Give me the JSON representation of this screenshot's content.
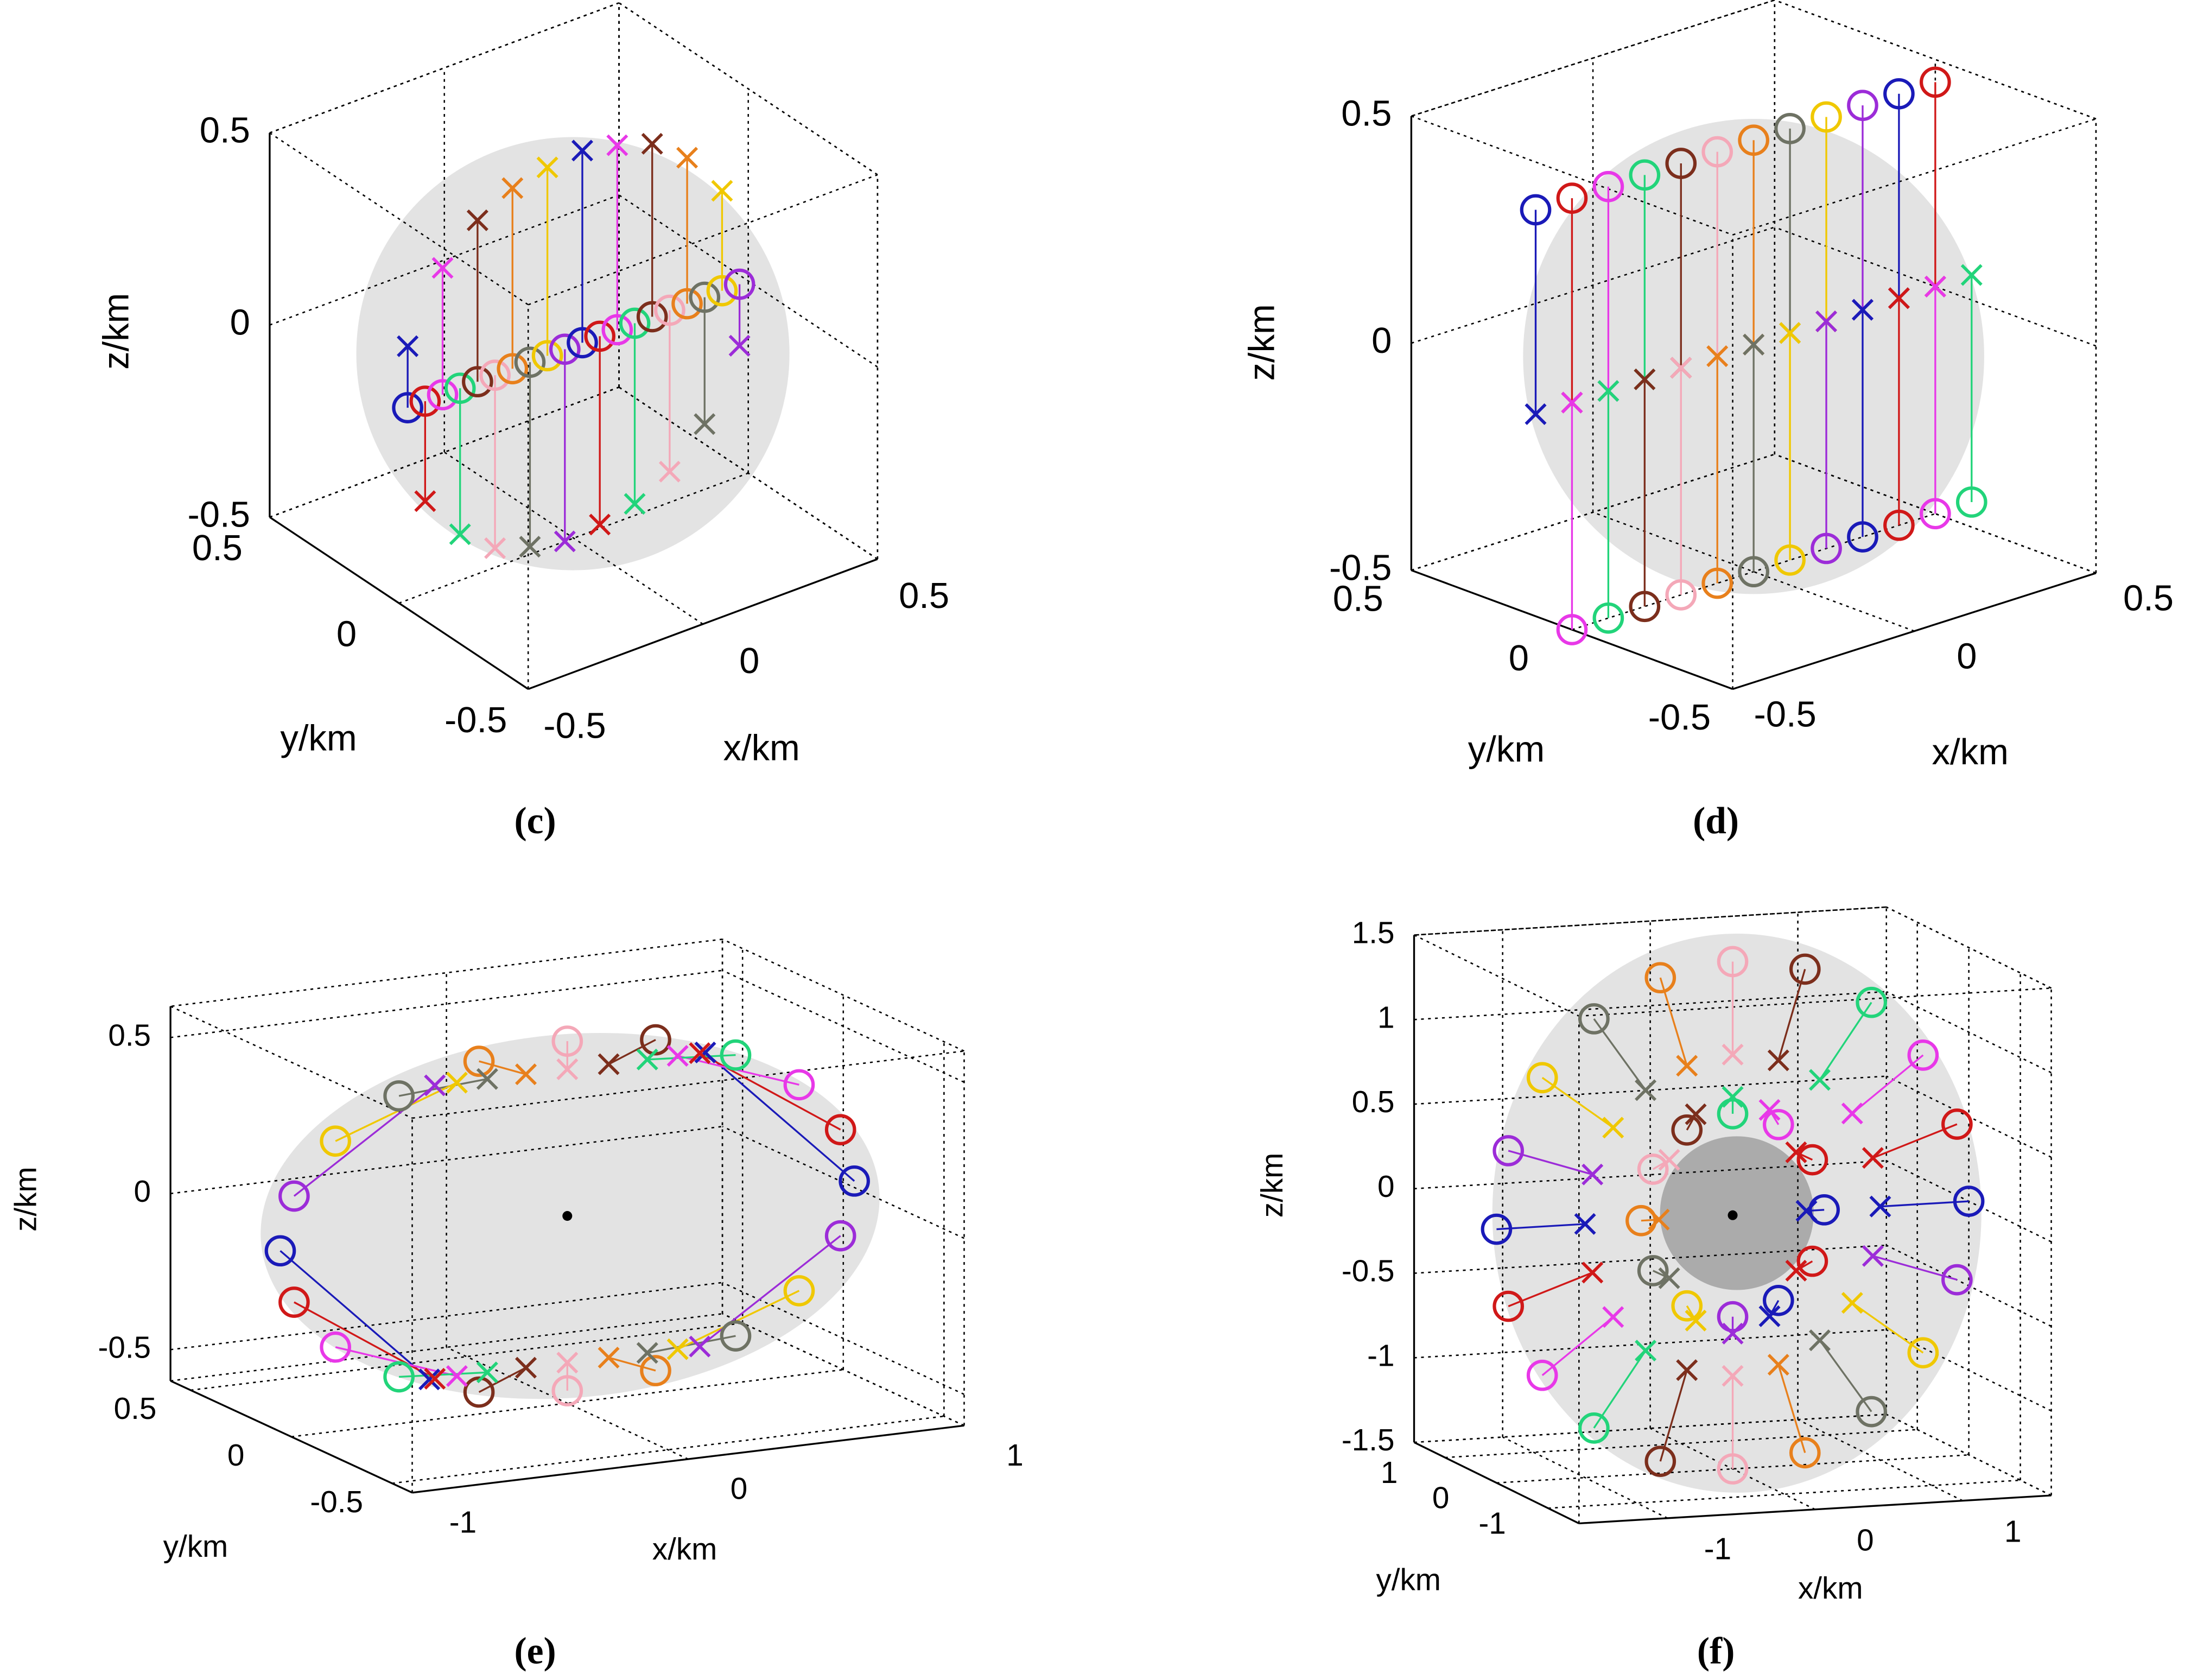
{
  "chart_data": [
    {
      "type": "scatter3d",
      "caption": "(c)",
      "xlabel": "x/km",
      "ylabel": "y/km",
      "zlabel": "z/km",
      "xlim": [
        -0.5,
        0.5
      ],
      "ylim": [
        -0.5,
        0.5
      ],
      "zlim": [
        -0.5,
        0.5
      ],
      "xticks": [
        -0.5,
        0,
        0.5
      ],
      "yticks": [
        -0.5,
        0,
        0.5
      ],
      "zticks": [
        -0.5,
        0,
        0.5
      ],
      "grid": true,
      "start_marker": "o",
      "end_marker": "x",
      "colors": [
        "#1a1ab8",
        "#d01818",
        "#e838e8",
        "#22d47a",
        "#7c2e1c",
        "#f4a8b8",
        "#e8801c",
        "#6e7264",
        "#f0c800",
        "#9c2cd8"
      ],
      "start": {
        "x": [
          -0.475,
          -0.425,
          -0.375,
          -0.325,
          -0.275,
          -0.225,
          -0.175,
          -0.125,
          -0.075,
          -0.025,
          0.025,
          0.075,
          0.125,
          0.175,
          0.225,
          0.275,
          0.325,
          0.375,
          0.425,
          0.475
        ],
        "y": [
          0,
          0,
          0,
          0,
          0,
          0,
          0,
          0,
          0,
          0,
          0,
          0,
          0,
          0,
          0,
          0,
          0,
          0,
          0,
          0
        ],
        "z": [
          0,
          0,
          0,
          0,
          0,
          0,
          0,
          0,
          0,
          0,
          0,
          0,
          0,
          0,
          0,
          0,
          0,
          0,
          0,
          0
        ]
      },
      "end": {
        "x": [
          -0.475,
          -0.425,
          -0.375,
          -0.325,
          -0.275,
          -0.225,
          -0.175,
          -0.125,
          -0.075,
          -0.025,
          0.025,
          0.075,
          0.125,
          0.175,
          0.225,
          0.275,
          0.325,
          0.375,
          0.425,
          0.475
        ],
        "y": [
          0,
          0,
          0,
          0,
          0,
          0,
          0,
          0,
          0,
          0,
          0,
          0,
          0,
          0,
          0,
          0,
          0,
          0,
          0,
          0
        ],
        "z": [
          0.16,
          -0.26,
          0.33,
          -0.38,
          0.42,
          -0.45,
          0.47,
          -0.48,
          0.49,
          -0.5,
          0.5,
          -0.49,
          0.48,
          -0.47,
          0.45,
          -0.42,
          0.38,
          -0.33,
          0.26,
          -0.16
        ]
      }
    },
    {
      "type": "scatter3d",
      "caption": "(d)",
      "xlabel": "x/km",
      "ylabel": "y/km",
      "zlabel": "z/km",
      "xlim": [
        -0.5,
        0.5
      ],
      "ylim": [
        -0.5,
        0.5
      ],
      "zlim": [
        -0.5,
        0.5
      ],
      "xticks": [
        -0.5,
        0,
        0.5
      ],
      "yticks": [
        -0.5,
        0,
        0.5
      ],
      "zticks": [
        -0.5,
        0,
        0.5
      ],
      "grid": true,
      "start_marker": "o",
      "end_marker": "x",
      "colors": [
        "#1a1ab8",
        "#d01818",
        "#e838e8",
        "#22d47a",
        "#7c2e1c",
        "#f4a8b8",
        "#e8801c",
        "#6e7264",
        "#f0c800",
        "#9c2cd8"
      ],
      "start": {
        "x": [
          -0.6,
          -0.5,
          -0.4,
          -0.3,
          -0.2,
          -0.1,
          0,
          0.1,
          0.2,
          0.3,
          0.4,
          0.5,
          -0.5,
          -0.4,
          -0.3,
          -0.2,
          -0.1,
          0,
          0.1,
          0.2,
          0.3,
          0.4,
          0.5,
          0.6
        ],
        "y": [
          0,
          0,
          0,
          0,
          0,
          0,
          0,
          0,
          0,
          0,
          0,
          0,
          0,
          0,
          0,
          0,
          0,
          0,
          0,
          0,
          0,
          0,
          0,
          0
        ],
        "z": [
          0.45,
          0.45,
          0.45,
          0.45,
          0.45,
          0.45,
          0.45,
          0.45,
          0.45,
          0.45,
          0.45,
          0.45,
          -0.5,
          -0.5,
          -0.5,
          -0.5,
          -0.5,
          -0.5,
          -0.5,
          -0.5,
          -0.5,
          -0.5,
          -0.5,
          -0.5
        ]
      },
      "end": {
        "x": [
          -0.6,
          -0.5,
          -0.4,
          -0.3,
          -0.2,
          -0.1,
          0,
          0.1,
          0.2,
          0.3,
          0.4,
          0.5,
          -0.5,
          -0.4,
          -0.3,
          -0.2,
          -0.1,
          0,
          0.1,
          0.2,
          0.3,
          0.4,
          0.5,
          0.6
        ],
        "y": [
          0,
          0,
          0,
          0,
          0,
          0,
          0,
          0,
          0,
          0,
          0,
          0,
          0,
          0,
          0,
          0,
          0,
          0,
          0,
          0,
          0,
          0,
          0,
          0
        ],
        "z": [
          0,
          0,
          0,
          0,
          0,
          0,
          0,
          0,
          0,
          0,
          0,
          0,
          0,
          0,
          0,
          0,
          0,
          0,
          0,
          0,
          0,
          0,
          0,
          0
        ]
      }
    },
    {
      "type": "scatter3d",
      "caption": "(e)",
      "xlabel": "x/km",
      "ylabel": "y/km",
      "zlabel": "z/km",
      "xlim": [
        -1,
        1
      ],
      "ylim": [
        -0.6,
        0.6
      ],
      "zlim": [
        -0.6,
        0.6
      ],
      "xticks": [
        -1,
        0,
        1
      ],
      "yticks": [
        -0.5,
        0,
        0.5
      ],
      "zticks": [
        -0.5,
        0,
        0.5
      ],
      "grid": true,
      "start_marker": "o",
      "end_marker": "x",
      "colors": [
        "#1a1ab8",
        "#d01818",
        "#e838e8",
        "#22d47a",
        "#7c2e1c",
        "#f4a8b8",
        "#e8801c",
        "#6e7264",
        "#f0c800",
        "#9c2cd8"
      ],
      "center": {
        "x": 0,
        "y": 0,
        "z": 0
      },
      "start": {
        "x": [
          1.04,
          0.99,
          0.84,
          0.61,
          0.32,
          0,
          -0.32,
          -0.61,
          -0.84,
          -0.99,
          -1.04,
          -0.99,
          -0.84,
          -0.61,
          -0.32,
          0,
          0.32,
          0.61,
          0.84,
          0.99
        ],
        "y": [
          0,
          0,
          0,
          0,
          0,
          0,
          0,
          0,
          0,
          0,
          0,
          0,
          0,
          0,
          0,
          0,
          0,
          0,
          0,
          0
        ],
        "z": [
          0,
          0.17,
          0.33,
          0.45,
          0.53,
          0.56,
          0.53,
          0.45,
          0.33,
          0.17,
          0,
          -0.17,
          -0.33,
          -0.45,
          -0.53,
          -0.56,
          -0.53,
          -0.45,
          -0.33,
          -0.17
        ]
      },
      "end": {
        "x": [
          0.5,
          0.48,
          0.4,
          0.29,
          0.15,
          0,
          -0.15,
          -0.29,
          -0.4,
          -0.48,
          -0.5,
          -0.48,
          -0.4,
          -0.29,
          -0.15,
          0,
          0.15,
          0.29,
          0.4,
          0.48
        ],
        "y": [
          0,
          0,
          0,
          0,
          0,
          0,
          0,
          0,
          0,
          0,
          0,
          0,
          0,
          0,
          0,
          0,
          0,
          0,
          0,
          0
        ],
        "z": [
          0.47,
          0.47,
          0.47,
          0.47,
          0.47,
          0.47,
          0.47,
          0.47,
          0.47,
          0.47,
          -0.47,
          -0.47,
          -0.47,
          -0.47,
          -0.47,
          -0.47,
          -0.47,
          -0.47,
          -0.47,
          -0.47
        ]
      }
    },
    {
      "type": "scatter3d",
      "caption": "(f)",
      "xlabel": "x/km",
      "ylabel": "y/km",
      "zlabel": "z/km",
      "xlim": [
        -1.6,
        1.6
      ],
      "ylim": [
        -1.6,
        1.6
      ],
      "zlim": [
        -1.5,
        1.5
      ],
      "xticks": [
        -1,
        0,
        1
      ],
      "yticks": [
        -1,
        0,
        1
      ],
      "zticks": [
        -1.5,
        -1,
        -0.5,
        0,
        0.5,
        1,
        1.5
      ],
      "grid": true,
      "start_marker": "o",
      "end_marker": "x",
      "colors": [
        "#1a1ab8",
        "#d01818",
        "#e838e8",
        "#22d47a",
        "#7c2e1c",
        "#f4a8b8",
        "#e8801c",
        "#6e7264",
        "#f0c800",
        "#9c2cd8"
      ],
      "center": {
        "x": 0,
        "y": 0,
        "z": 0
      },
      "start": {
        "x": [
          1.6,
          1.52,
          1.29,
          0.94,
          0.49,
          0,
          -0.49,
          -0.94,
          -1.29,
          -1.52,
          -1.6,
          -1.52,
          -1.29,
          -0.94,
          -0.49,
          0,
          0.49,
          0.94,
          1.29,
          1.52,
          0.62,
          0.54,
          0.31,
          0,
          -0.31,
          -0.54,
          -0.62,
          -0.54,
          -0.31,
          0,
          0.31,
          0.54
        ],
        "y": [
          0,
          0,
          0,
          0,
          0,
          0,
          0,
          0,
          0,
          0,
          0,
          0,
          0,
          0,
          0,
          0,
          0,
          0,
          0,
          0,
          0,
          0,
          0,
          0,
          0,
          0,
          0,
          0,
          0,
          0,
          0,
          0
        ],
        "z": [
          0,
          0.46,
          0.88,
          1.21,
          1.43,
          1.5,
          1.43,
          1.21,
          0.88,
          0.46,
          0,
          -0.46,
          -0.88,
          -1.21,
          -1.43,
          -1.5,
          -1.43,
          -1.21,
          -0.88,
          -0.46,
          0,
          0.3,
          0.52,
          0.6,
          0.52,
          0.3,
          0,
          -0.3,
          -0.52,
          -0.6,
          -0.52,
          -0.3
        ]
      },
      "end": {
        "x": [
          1,
          0.95,
          0.81,
          0.59,
          0.31,
          0,
          -0.31,
          -0.59,
          -0.81,
          -0.95,
          -1,
          -0.95,
          -0.81,
          -0.59,
          -0.31,
          0,
          0.31,
          0.59,
          0.81,
          0.95,
          0.5,
          0.43,
          0.25,
          0,
          -0.25,
          -0.43,
          -0.5,
          -0.43,
          -0.25,
          0,
          0.25,
          0.43
        ],
        "y": [
          0,
          0,
          0,
          0,
          0,
          0,
          0,
          0,
          0,
          0,
          0,
          0,
          0,
          0,
          0,
          0,
          0,
          0,
          0,
          0,
          0,
          0,
          0,
          0,
          0,
          0,
          0,
          0,
          0,
          0,
          0,
          0
        ],
        "z": [
          0,
          0.29,
          0.56,
          0.77,
          0.9,
          0.95,
          0.9,
          0.77,
          0.56,
          0.29,
          0,
          -0.29,
          -0.56,
          -0.77,
          -0.9,
          -0.95,
          -0.9,
          -0.77,
          -0.56,
          -0.29,
          0,
          0.35,
          0.61,
          0.7,
          0.61,
          0.35,
          0,
          -0.35,
          -0.61,
          -0.7,
          -0.61,
          -0.35
        ]
      }
    }
  ]
}
